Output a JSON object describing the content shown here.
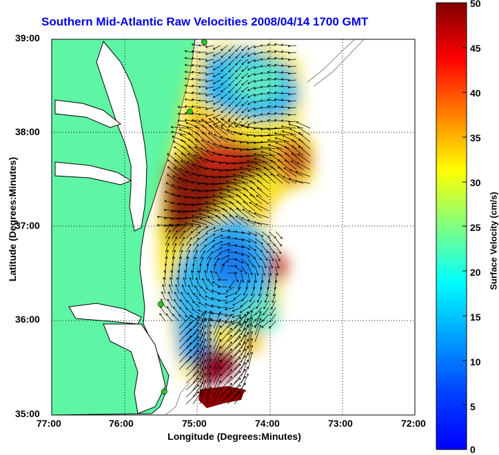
{
  "title": "Southern Mid-Atlantic Raw Velocities 2008/04/14 1700 GMT",
  "xlabel": "Longitude (Degrees:Minutes)",
  "ylabel": "Latitude (Degrees:Minutes)",
  "colorbar_label": "Surface Velocity (cm/s)",
  "x_ticks": [
    "77:00",
    "76:00",
    "75:00",
    "74:00",
    "73:00",
    "72:00"
  ],
  "y_ticks": [
    "39:00",
    "38:00",
    "37:00",
    "36:00",
    "35:00"
  ],
  "colorbar_ticks": [
    "50",
    "45",
    "40",
    "35",
    "30",
    "25",
    "20",
    "15",
    "10",
    "5",
    "0"
  ],
  "colors": {
    "land": "#5ef5a5",
    "coastline": "#000000",
    "bathymetry": "#9a9a9a",
    "station": "#22cc22",
    "title": "#0000ee"
  },
  "map_extent": {
    "lon_range": [
      -77,
      -72
    ],
    "lat_range": [
      35,
      39
    ],
    "colorbar_range_cm_s": [
      0,
      50
    ],
    "colormap": "jet",
    "grid": true
  },
  "stations": [
    {
      "lon": -74.9,
      "lat": 38.97
    },
    {
      "lon": -75.1,
      "lat": 38.23
    },
    {
      "lon": -75.5,
      "lat": 36.18
    },
    {
      "lon": -75.45,
      "lat": 35.25
    }
  ]
}
